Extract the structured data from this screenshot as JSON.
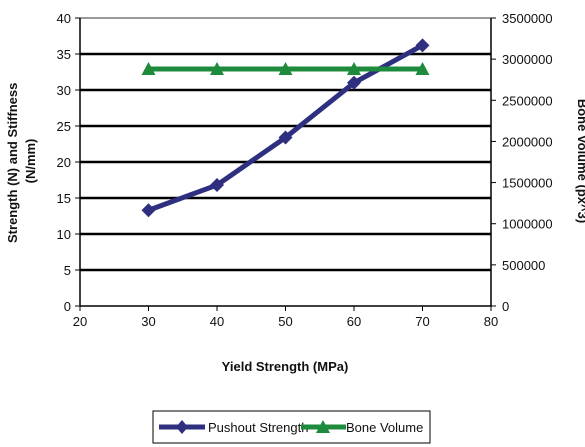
{
  "chart_data": {
    "type": "line",
    "title": "",
    "xlabel": "Yield Strength (MPa)",
    "ylabel": "Strength (N) and Stiffness (N/mm)",
    "ylabel_lines": [
      "Strength (N) and Stiffness",
      "(N/mm)"
    ],
    "y2label": "Bone Volume (px^3)",
    "xlim": [
      20,
      80
    ],
    "xticks": [
      20,
      30,
      40,
      50,
      60,
      70,
      80
    ],
    "ylim": [
      0,
      40
    ],
    "yticks": [
      0,
      5,
      10,
      15,
      20,
      25,
      30,
      35,
      40
    ],
    "y2lim": [
      0,
      3500000
    ],
    "y2ticks": [
      0,
      500000,
      1000000,
      1500000,
      2000000,
      2500000,
      3000000,
      3500000
    ],
    "grid": true,
    "legend_position": "bottom-center",
    "series": [
      {
        "name": "Pushout Strength",
        "axis": "left",
        "marker": "diamond",
        "color": "#2e2f7f",
        "x": [
          30,
          40,
          50,
          60,
          70
        ],
        "values": [
          13.3,
          16.8,
          23.4,
          31.0,
          36.2
        ]
      },
      {
        "name": "Bone Volume",
        "axis": "right",
        "marker": "triangle",
        "color": "#1e8a3c",
        "x": [
          30,
          40,
          50,
          60,
          70
        ],
        "values": [
          2880000,
          2880000,
          2880000,
          2880000,
          2880000
        ]
      }
    ]
  }
}
